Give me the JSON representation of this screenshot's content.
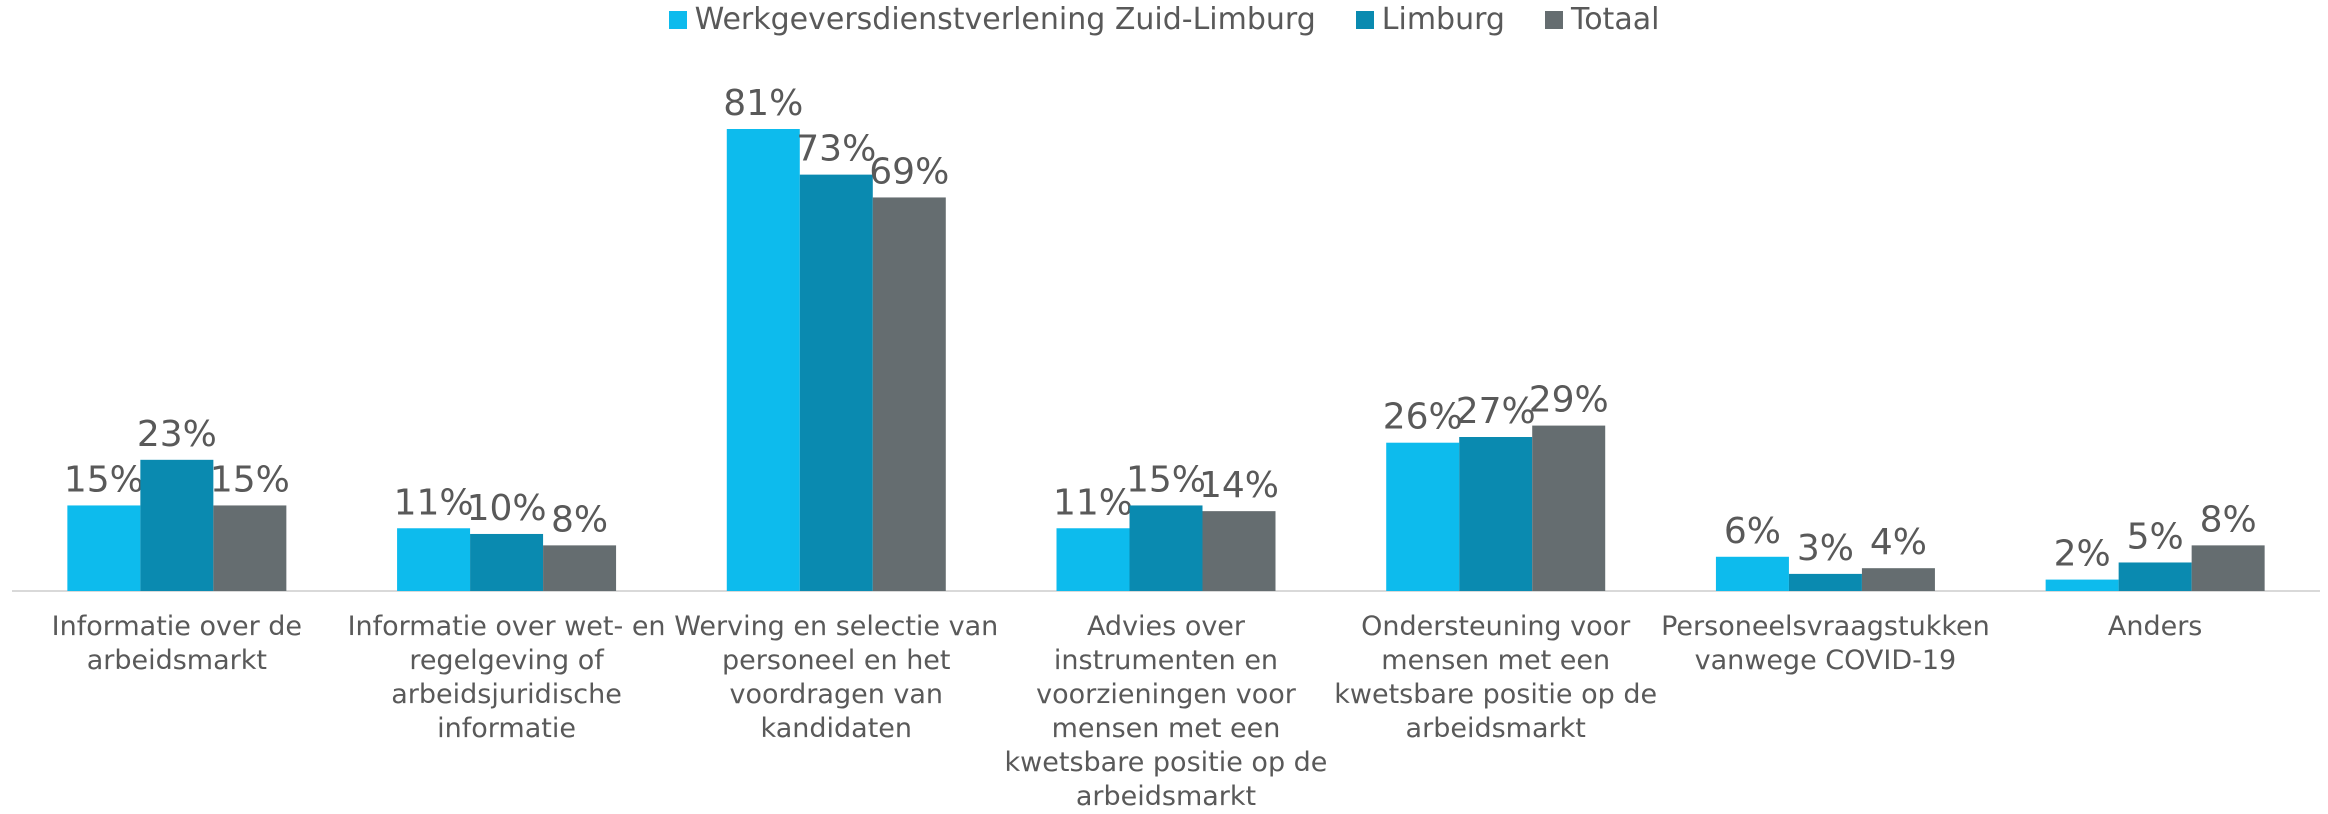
{
  "chart_data": {
    "type": "bar",
    "categories": [
      "Informatie over de arbeidsmarkt",
      "Informatie over wet- en regelgeving of arbeidsjuridische informatie",
      "Werving en selectie van personeel en het voordragen van kandidaten",
      "Advies over instrumenten en voorzieningen voor mensen met een kwetsbare positie op de arbeidsmarkt",
      "Ondersteuning voor mensen met een kwetsbare positie op de arbeidsmarkt",
      "Personeelsvraagstukken vanwege COVID-19",
      "Anders"
    ],
    "series": [
      {
        "name": "Werkgeversdienstverlening Zuid-Limburg",
        "color": "#0dbbed",
        "values": [
          15,
          11,
          81,
          11,
          26,
          6,
          2
        ],
        "value_labels": [
          "15%",
          "11%",
          "81%",
          "11%",
          "26%",
          "6%",
          "2%"
        ]
      },
      {
        "name": "Limburg",
        "color": "#0a8ab0",
        "values": [
          23,
          10,
          73,
          15,
          27,
          3,
          5
        ],
        "value_labels": [
          "23%",
          "10%",
          "73%",
          "15%",
          "27%",
          "3%",
          "5%"
        ]
      },
      {
        "name": "Totaal",
        "color": "#656d70",
        "values": [
          15,
          8,
          69,
          14,
          29,
          4,
          8
        ],
        "value_labels": [
          "15%",
          "8%",
          "69%",
          "14%",
          "29%",
          "4%",
          "8%"
        ]
      }
    ],
    "legend": "top"
  }
}
